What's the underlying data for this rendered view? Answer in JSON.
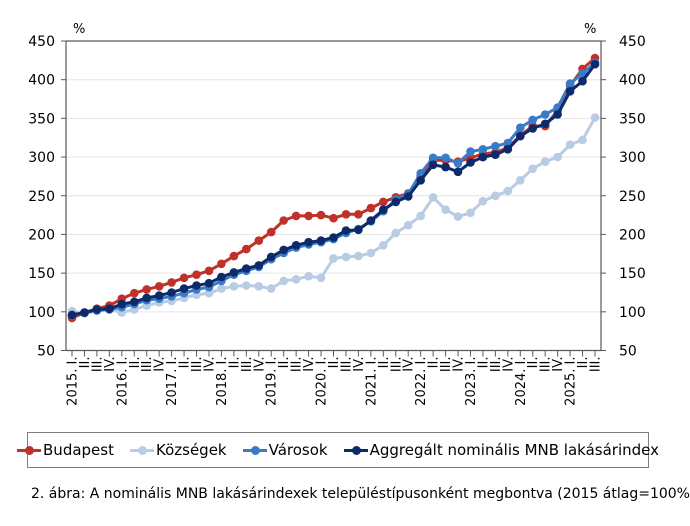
{
  "chart_data": {
    "type": "line",
    "title": "",
    "caption": "2. ábra: A nominális MNB lakásárindexek településtípusonként megbontva (2015 átlag=100%)",
    "ylabel_left": "%",
    "ylabel_right": "%",
    "ylim": [
      50,
      450
    ],
    "yticks": [
      50,
      100,
      150,
      200,
      250,
      300,
      350,
      400,
      450
    ],
    "grid": true,
    "legend_position": "bottom",
    "x": [
      "2015. I.",
      "II.",
      "III.",
      "IV.",
      "2016. I.",
      "II.",
      "III.",
      "IV.",
      "2017. I.",
      "II.",
      "III.",
      "IV.",
      "2018. I.",
      "II.",
      "III.",
      "IV.",
      "2019. I.",
      "II.",
      "III.",
      "IV.",
      "2020. I.",
      "II.",
      "III.",
      "IV.",
      "2021. I.",
      "II.",
      "III.",
      "IV.",
      "2022. I.",
      "II.",
      "III.",
      "IV.",
      "2023. I.",
      "II.",
      "III.",
      "IV.",
      "2024. I.",
      "II.",
      "III.",
      "IV.",
      "2025. I.",
      "II.",
      "III."
    ],
    "series": [
      {
        "name": "Budapest",
        "color": "#c0312b",
        "values": [
          92,
          99,
          104,
          108,
          117,
          124,
          129,
          133,
          138,
          144,
          148,
          153,
          162,
          172,
          181,
          192,
          203,
          218,
          224,
          224,
          225,
          221,
          226,
          226,
          234,
          242,
          248,
          253,
          275,
          296,
          296,
          294,
          299,
          304,
          306,
          312,
          328,
          340,
          340,
          360,
          392,
          414,
          428
        ]
      },
      {
        "name": "Községek",
        "color": "#b9cce4",
        "values": [
          101,
          98,
          101,
          103,
          99,
          103,
          108,
          112,
          114,
          118,
          122,
          124,
          130,
          133,
          134,
          133,
          130,
          140,
          142,
          146,
          144,
          169,
          171,
          172,
          176,
          186,
          202,
          212,
          224,
          248,
          232,
          223,
          228,
          243,
          250,
          256,
          270,
          285,
          294,
          300,
          316,
          322,
          351
        ]
      },
      {
        "name": "Városok",
        "color": "#3a7bc8",
        "values": [
          95,
          99,
          102,
          103,
          106,
          110,
          115,
          117,
          120,
          124,
          129,
          132,
          140,
          148,
          153,
          158,
          168,
          176,
          183,
          187,
          190,
          194,
          202,
          207,
          217,
          230,
          245,
          252,
          279,
          299,
          299,
          292,
          307,
          310,
          314,
          318,
          338,
          348,
          355,
          364,
          395,
          408,
          422
        ]
      },
      {
        "name": "Aggregált nominális MNB lakásárindex",
        "color": "#0d2a6b",
        "values": [
          96,
          99,
          103,
          104,
          110,
          113,
          118,
          121,
          125,
          130,
          134,
          137,
          145,
          151,
          156,
          160,
          171,
          180,
          186,
          190,
          192,
          196,
          205,
          206,
          218,
          232,
          242,
          249,
          270,
          290,
          287,
          281,
          293,
          300,
          303,
          310,
          327,
          337,
          343,
          355,
          385,
          398,
          420
        ]
      }
    ]
  }
}
